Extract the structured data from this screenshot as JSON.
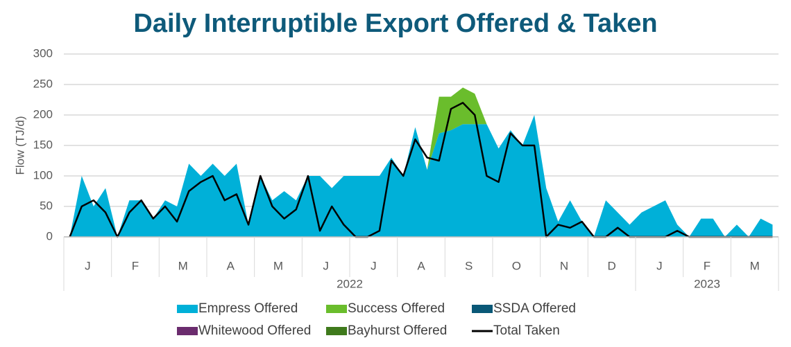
{
  "chart_data": {
    "type": "stacked_area_line",
    "title": "Daily Interruptible Export Offered & Taken",
    "y_label": "Flow (TJ/d)",
    "months": [
      "J",
      "F",
      "M",
      "A",
      "M",
      "J",
      "J",
      "A",
      "S",
      "O",
      "N",
      "D",
      "J",
      "F",
      "M"
    ],
    "years": [
      {
        "label": "2022",
        "span": 12
      },
      {
        "label": "2023",
        "span": 3
      }
    ],
    "ylim": [
      0,
      300
    ],
    "yticks": [
      0,
      50,
      100,
      150,
      200,
      250,
      300
    ],
    "grid": true,
    "series": [
      {
        "name": "Empress Offered",
        "color": "#00b0d8",
        "kind": "area",
        "values": [
          0,
          100,
          50,
          80,
          0,
          60,
          60,
          30,
          60,
          50,
          120,
          100,
          120,
          100,
          120,
          20,
          100,
          60,
          75,
          60,
          100,
          100,
          80,
          100,
          100,
          100,
          100,
          130,
          100,
          180,
          110,
          170,
          175,
          185,
          185,
          185,
          145,
          175,
          150,
          200,
          80,
          25,
          60,
          25,
          0,
          60,
          40,
          20,
          40,
          50,
          60,
          20,
          0,
          30,
          30,
          0,
          20,
          0,
          30,
          20
        ]
      },
      {
        "name": "Success Offered",
        "color": "#6abd2c",
        "kind": "area",
        "values": [
          0,
          0,
          0,
          0,
          0,
          0,
          0,
          0,
          0,
          0,
          0,
          0,
          0,
          0,
          0,
          0,
          0,
          0,
          0,
          0,
          0,
          0,
          0,
          0,
          0,
          0,
          0,
          0,
          0,
          0,
          0,
          60,
          55,
          60,
          50,
          0,
          0,
          0,
          0,
          0,
          0,
          0,
          0,
          0,
          0,
          0,
          0,
          0,
          0,
          0,
          0,
          0,
          0,
          0,
          0,
          0,
          0,
          0,
          0,
          0
        ]
      },
      {
        "name": "SSDA Offered",
        "color": "#0a5877",
        "kind": "area",
        "values": [
          0,
          0,
          0,
          0,
          0,
          0,
          0,
          0,
          0,
          0,
          0,
          0,
          0,
          0,
          0,
          0,
          0,
          0,
          0,
          0,
          0,
          0,
          0,
          0,
          0,
          0,
          0,
          0,
          0,
          0,
          0,
          0,
          0,
          0,
          0,
          0,
          0,
          0,
          0,
          0,
          0,
          0,
          0,
          0,
          0,
          0,
          0,
          0,
          0,
          0,
          0,
          0,
          0,
          0,
          0,
          0,
          0,
          0,
          0,
          0
        ]
      },
      {
        "name": "Whitewood Offered",
        "color": "#6b2c6e",
        "kind": "area",
        "values": [
          0,
          0,
          0,
          0,
          0,
          0,
          0,
          0,
          0,
          0,
          0,
          0,
          0,
          0,
          0,
          0,
          0,
          0,
          0,
          0,
          0,
          0,
          0,
          0,
          0,
          0,
          0,
          0,
          0,
          0,
          0,
          0,
          0,
          0,
          0,
          0,
          0,
          0,
          0,
          0,
          0,
          0,
          0,
          0,
          0,
          0,
          0,
          0,
          0,
          0,
          0,
          0,
          0,
          0,
          0,
          0,
          0,
          0,
          0,
          0
        ]
      },
      {
        "name": "Bayhurst Offered",
        "color": "#3f7a1c",
        "kind": "area",
        "values": [
          0,
          0,
          0,
          0,
          0,
          0,
          0,
          0,
          0,
          0,
          0,
          0,
          0,
          0,
          0,
          0,
          0,
          0,
          0,
          0,
          0,
          0,
          0,
          0,
          0,
          0,
          0,
          0,
          0,
          0,
          0,
          0,
          0,
          0,
          0,
          0,
          0,
          0,
          0,
          0,
          0,
          0,
          0,
          0,
          0,
          0,
          0,
          0,
          0,
          0,
          0,
          0,
          0,
          0,
          0,
          0,
          0,
          0,
          0,
          0
        ]
      },
      {
        "name": "Total Taken",
        "color": "#000000",
        "kind": "line",
        "values": [
          0,
          50,
          60,
          40,
          0,
          40,
          60,
          30,
          50,
          25,
          75,
          90,
          100,
          60,
          70,
          20,
          100,
          50,
          30,
          45,
          100,
          10,
          50,
          20,
          0,
          0,
          10,
          125,
          100,
          160,
          130,
          125,
          210,
          220,
          200,
          100,
          90,
          170,
          150,
          150,
          0,
          20,
          15,
          25,
          0,
          0,
          15,
          0,
          0,
          0,
          0,
          10,
          0,
          0,
          0,
          0,
          0,
          0,
          0,
          0
        ]
      }
    ]
  }
}
